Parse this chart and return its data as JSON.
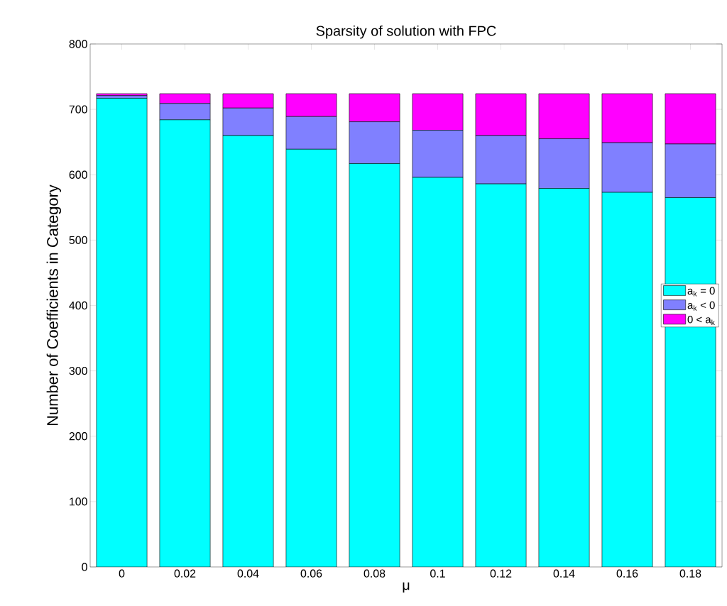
{
  "chart_data": {
    "type": "bar",
    "title": "Sparsity of solution with FPC",
    "xlabel": "μ",
    "ylabel": "Number of Coefficients in Category",
    "categories": [
      "0",
      "0.02",
      "0.04",
      "0.06",
      "0.08",
      "0.1",
      "0.12",
      "0.14",
      "0.16",
      "0.18"
    ],
    "stacked": true,
    "series": [
      {
        "name": "a$_{k}$ = 0",
        "color": "#00ffff",
        "values": [
          717,
          684,
          660,
          639,
          617,
          596,
          586,
          579,
          573,
          565
        ]
      },
      {
        "name": "a$_{k}$ < 0",
        "color": "#8080ff",
        "values": [
          4,
          25,
          42,
          50,
          64,
          72,
          74,
          76,
          76,
          82
        ]
      },
      {
        "name": "0 < a$_{k}$",
        "color": "#ff00ff",
        "values": [
          3,
          15,
          22,
          35,
          43,
          56,
          64,
          69,
          75,
          77
        ]
      }
    ],
    "ylim": [
      0,
      800
    ],
    "yticks": [
      0,
      100,
      200,
      300,
      400,
      500,
      600,
      700,
      800
    ],
    "legend": "right",
    "grid": false
  }
}
